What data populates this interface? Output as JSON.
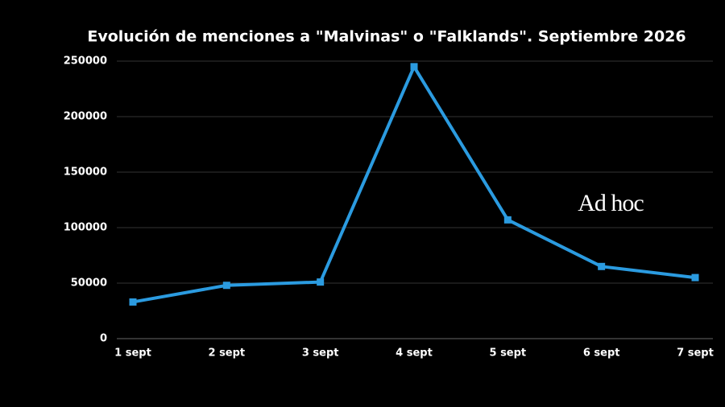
{
  "chart_data": {
    "type": "line",
    "title": "Evolución de menciones a \"Malvinas\" o \"Falklands\". Septiembre 2026",
    "watermark": "Ad hoc",
    "categories": [
      "1 sept",
      "2 sept",
      "3 sept",
      "4 sept",
      "5 sept",
      "6 sept",
      "7 sept"
    ],
    "values": [
      33000,
      48000,
      51000,
      245000,
      107000,
      65000,
      55000
    ],
    "color": "#2b9be0",
    "ylim": [
      0,
      250000
    ],
    "yticks": [
      0,
      50000,
      100000,
      150000,
      200000,
      250000
    ],
    "grid": true
  }
}
